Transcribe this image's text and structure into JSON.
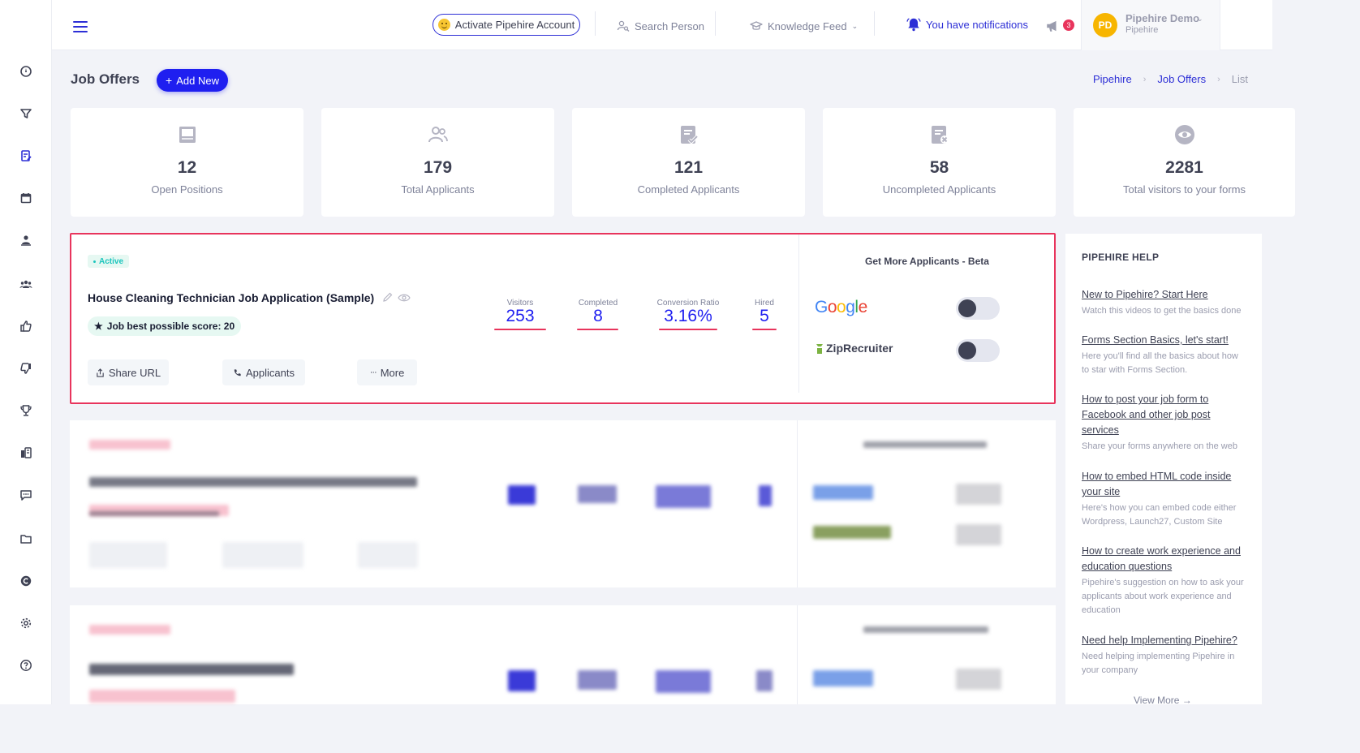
{
  "header": {
    "activate_label": "Activate Pipehire Account",
    "search_label": "Search Person",
    "knowledge_label": "Knowledge Feed",
    "notifications_label": "You have notifications",
    "announcement_count": "3",
    "user": {
      "initials": "PD",
      "name": "Pipehire Demo",
      "org": "Pipehire"
    }
  },
  "page": {
    "title": "Job Offers",
    "add_new_label": "Add New",
    "breadcrumb": [
      "Pipehire",
      "Job Offers",
      "List"
    ]
  },
  "stats": [
    {
      "value": "12",
      "label": "Open Positions",
      "icon": "newspaper-icon"
    },
    {
      "value": "179",
      "label": "Total Applicants",
      "icon": "users-icon"
    },
    {
      "value": "121",
      "label": "Completed Applicants",
      "icon": "form-check-icon"
    },
    {
      "value": "58",
      "label": "Uncompleted Applicants",
      "icon": "form-x-icon"
    },
    {
      "value": "2281",
      "label": "Total visitors to your forms",
      "icon": "eye-icon"
    }
  ],
  "job": {
    "status": "Active",
    "title": "House Cleaning Technician Job Application (Sample)",
    "score_label": "Job best possible score: 20",
    "buttons": {
      "share": "Share URL",
      "applicants": "Applicants",
      "more": "More"
    },
    "metrics": [
      {
        "label": "Visitors",
        "value": "253"
      },
      {
        "label": "Completed",
        "value": "8"
      },
      {
        "label": "Conversion Ratio",
        "value": "3.16%"
      },
      {
        "label": "Hired",
        "value": "5"
      }
    ],
    "more_applicants_title": "Get More Applicants - Beta",
    "integrations": [
      {
        "name": "Google",
        "enabled": false
      },
      {
        "name": "ZipRecruiter",
        "enabled": false
      }
    ]
  },
  "help": {
    "title": "PIPEHIRE HELP",
    "items": [
      {
        "link": "New to Pipehire? Start Here",
        "desc": "Watch this videos to get the basics done"
      },
      {
        "link": "Forms Section Basics, let's start!",
        "desc": "Here you'll find all the basics about how to star with Forms Section."
      },
      {
        "link": "How to post your job form to Facebook and other job post services",
        "desc": "Share your forms anywhere on the web"
      },
      {
        "link": "How to embed HTML code inside your site",
        "desc": "Here's how you can embed code either Wordpress, Launch27, Custom Site"
      },
      {
        "link": "How to create work experience and education questions",
        "desc": "Pipehire's suggestion on how to ask your applicants about work experience and education"
      },
      {
        "link": "Need help Implementing Pipehire?",
        "desc": "Need helping implementing Pipehire in your company"
      }
    ],
    "view_more": "View More →"
  },
  "colors": {
    "accent": "#1f1ff0",
    "highlight": "#e8345c",
    "active": "#1bc5bd"
  }
}
